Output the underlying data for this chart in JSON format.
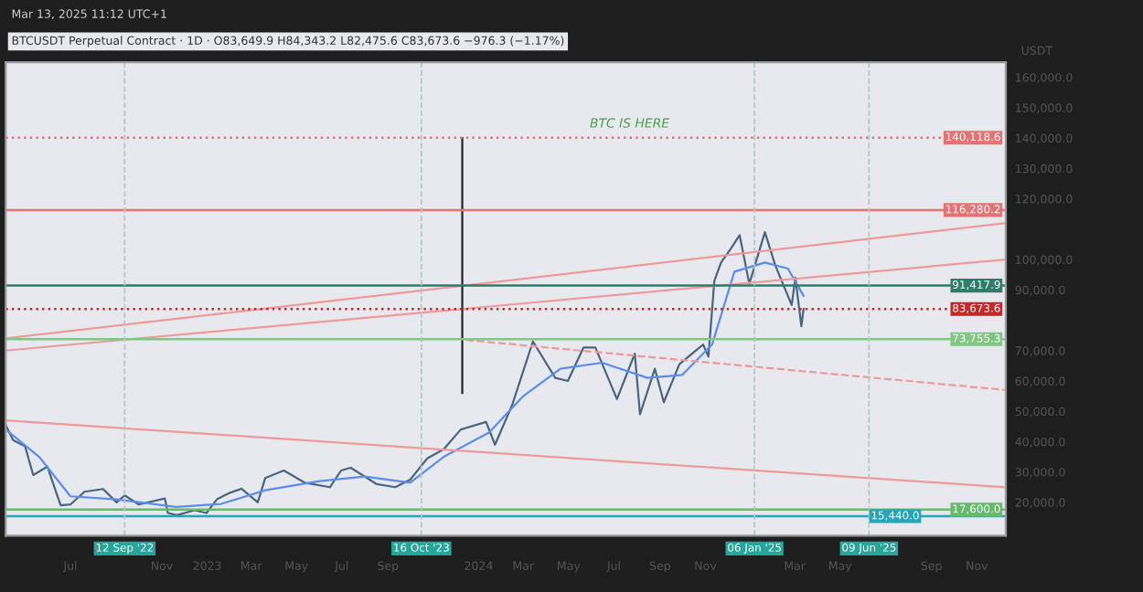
{
  "chart_data": {
    "type": "line",
    "title": "BTCUSDT Perpetual Contract · 1D · O83,649.9 H84,343.2 L82,475.6 C83,673.6 −976.3 (−1.17%)",
    "subtitle": "Mar 13, 2025 11:12 UTC+1",
    "ylabel": "USDT",
    "xlim": [
      "2022-04-05",
      "2025-12-10"
    ],
    "xticks": [
      {
        "value": "2022-07-01",
        "label": "Jul"
      },
      {
        "value": "2022-11-01",
        "label": "Nov"
      },
      {
        "value": "2023-01-01",
        "label": "2023"
      },
      {
        "value": "2023-03-01",
        "label": "Mar"
      },
      {
        "value": "2023-05-01",
        "label": "May"
      },
      {
        "value": "2023-07-01",
        "label": "Jul"
      },
      {
        "value": "2023-09-01",
        "label": "Sep"
      },
      {
        "value": "2024-01-01",
        "label": "2024"
      },
      {
        "value": "2024-03-01",
        "label": "Mar"
      },
      {
        "value": "2024-05-01",
        "label": "May"
      },
      {
        "value": "2024-07-01",
        "label": "Jul"
      },
      {
        "value": "2024-09-01",
        "label": "Sep"
      },
      {
        "value": "2024-11-01",
        "label": "Nov"
      },
      {
        "value": "2025-03-01",
        "label": "Mar"
      },
      {
        "value": "2025-05-01",
        "label": "May"
      },
      {
        "value": "2025-09-01",
        "label": "Sep"
      },
      {
        "value": "2025-11-01",
        "label": "Nov"
      }
    ],
    "ylim": [
      9000,
      165000
    ],
    "yticks": [
      {
        "value": 20000,
        "label": "20,000.0"
      },
      {
        "value": 30000,
        "label": "30,000.0"
      },
      {
        "value": 40000,
        "label": "40,000.0"
      },
      {
        "value": 50000,
        "label": "50,000.0"
      },
      {
        "value": 60000,
        "label": "60,000.0"
      },
      {
        "value": 70000,
        "label": "70,000.0"
      },
      {
        "value": 90000,
        "label": "90,000.0"
      },
      {
        "value": 100000,
        "label": "100,000.0"
      },
      {
        "value": 120000,
        "label": "120,000.0"
      },
      {
        "value": 130000,
        "label": "130,000.0"
      },
      {
        "value": 140000,
        "label": "140,000.0"
      },
      {
        "value": 150000,
        "label": "150,000.0"
      },
      {
        "value": 160000,
        "label": "160,000.0"
      }
    ],
    "grid": false,
    "legend": false,
    "series": [
      {
        "color": "#4a6580",
        "x": [
          "2022-04-05",
          "2022-04-15",
          "2022-05-01",
          "2022-05-12",
          "2022-05-31",
          "2022-06-13",
          "2022-06-18",
          "2022-07-01",
          "2022-07-20",
          "2022-08-14",
          "2022-09-01",
          "2022-09-12",
          "2022-10-01",
          "2022-11-05",
          "2022-11-09",
          "2022-11-21",
          "2022-12-15",
          "2022-12-31",
          "2023-01-14",
          "2023-01-31",
          "2023-02-16",
          "2023-03-10",
          "2023-03-20",
          "2023-04-14",
          "2023-05-12",
          "2023-06-15",
          "2023-06-30",
          "2023-07-13",
          "2023-08-17",
          "2023-09-11",
          "2023-10-01",
          "2023-10-24",
          "2023-11-15",
          "2023-12-08",
          "2024-01-11",
          "2024-01-23",
          "2024-02-15",
          "2024-03-14",
          "2024-04-13",
          "2024-04-30",
          "2024-05-21",
          "2024-06-06",
          "2024-07-05",
          "2024-07-29",
          "2024-08-05",
          "2024-08-25",
          "2024-09-06",
          "2024-09-27",
          "2024-10-29",
          "2024-11-05",
          "2024-11-13",
          "2024-11-22",
          "2024-12-05",
          "2024-12-17",
          "2024-12-30",
          "2025-01-20",
          "2025-02-03",
          "2025-02-25",
          "2025-03-02",
          "2025-03-10",
          "2025-03-13"
        ],
        "values": [
          45500,
          40500,
          38500,
          29000,
          31800,
          22500,
          19000,
          19300,
          23500,
          24400,
          20000,
          22300,
          19300,
          21300,
          16500,
          15800,
          17400,
          16500,
          21000,
          23100,
          24500,
          20000,
          28000,
          30500,
          26500,
          25000,
          30500,
          31400,
          26000,
          25000,
          27500,
          34500,
          37500,
          44000,
          46500,
          39000,
          52000,
          73000,
          61000,
          60000,
          71000,
          71000,
          54000,
          69000,
          49000,
          64000,
          53000,
          65500,
          72000,
          68000,
          93000,
          99000,
          103500,
          108000,
          92000,
          109000,
          98000,
          85000,
          94000,
          78000,
          83700
        ]
      },
      {
        "color": "#5b8def",
        "x": [
          "2022-04-05",
          "2022-05-20",
          "2022-07-01",
          "2022-09-01",
          "2022-11-20",
          "2023-01-20",
          "2023-03-20",
          "2023-06-01",
          "2023-08-01",
          "2023-10-01",
          "2023-11-15",
          "2024-01-15",
          "2024-03-01",
          "2024-04-20",
          "2024-06-15",
          "2024-08-15",
          "2024-10-01",
          "2024-11-10",
          "2024-12-10",
          "2025-01-20",
          "2025-02-20",
          "2025-03-13"
        ],
        "values": [
          44000,
          35000,
          22000,
          21000,
          18500,
          19500,
          24000,
          27000,
          28500,
          26500,
          35000,
          43000,
          55000,
          64000,
          66000,
          61000,
          62000,
          72000,
          96000,
          99000,
          97000,
          88000
        ]
      },
      {
        "color": "#ef9a9a",
        "x": [
          "2022-04-05",
          "2025-12-10"
        ],
        "values": [
          74000,
          112000
        ]
      },
      {
        "color": "#ef9a9a",
        "x": [
          "2022-04-05",
          "2025-12-10"
        ],
        "values": [
          70000,
          100000
        ]
      },
      {
        "color": "#ef9a9a",
        "line_style": "dashed",
        "x": [
          "2023-12-15",
          "2025-12-10"
        ],
        "values": [
          73500,
          57000
        ]
      },
      {
        "color": "#ef9a9a",
        "x": [
          "2022-04-05",
          "2025-12-10"
        ],
        "values": [
          47000,
          25000
        ]
      },
      {
        "color": "#222222",
        "x": [
          "2023-12-10",
          "2023-12-10"
        ],
        "values": [
          140000,
          56000
        ]
      }
    ],
    "ref_lines": [
      {
        "axis": "y",
        "value": 140118.6,
        "label": "140,118.6",
        "color": "#e57373",
        "line_style": "dotted"
      },
      {
        "axis": "y",
        "value": 116280.2,
        "label": "116,280.2",
        "color": "#e57373",
        "line_style": "solid"
      },
      {
        "axis": "y",
        "value": 91417.9,
        "label": "91,417.9",
        "color": "#2e7d6b",
        "line_style": "solid"
      },
      {
        "axis": "y",
        "value": 83673.6,
        "label": "83,673.6",
        "color": "#c62828",
        "line_style": "dotted"
      },
      {
        "axis": "y",
        "value": 73755.3,
        "label": "73,755.3",
        "color": "#81c784",
        "line_style": "solid"
      },
      {
        "axis": "y",
        "value": 17600,
        "label": "17,600.0",
        "color": "#66bb6a",
        "line_style": "solid"
      },
      {
        "axis": "y",
        "value": 15440,
        "label": "15,440.0",
        "color": "#26a5b8",
        "line_style": "solid"
      },
      {
        "axis": "x",
        "value": "2022-09-12",
        "label": "12 Sep '22",
        "color": "#b0c8c8",
        "line_style": "dashed"
      },
      {
        "axis": "x",
        "value": "2023-10-16",
        "label": "16 Oct '23",
        "color": "#b0c8c8",
        "line_style": "dashed"
      },
      {
        "axis": "x",
        "value": "2025-01-06",
        "label": "06 Jan '25",
        "color": "#b0c8c8",
        "line_style": "dashed"
      },
      {
        "axis": "x",
        "value": "2025-06-09",
        "label": "09 Jun '25",
        "color": "#b0c8c8",
        "line_style": "dashed"
      }
    ],
    "annotations": [
      {
        "text": "BTC IS HERE",
        "x": "2024-07-22",
        "y": 140118.6
      }
    ]
  }
}
